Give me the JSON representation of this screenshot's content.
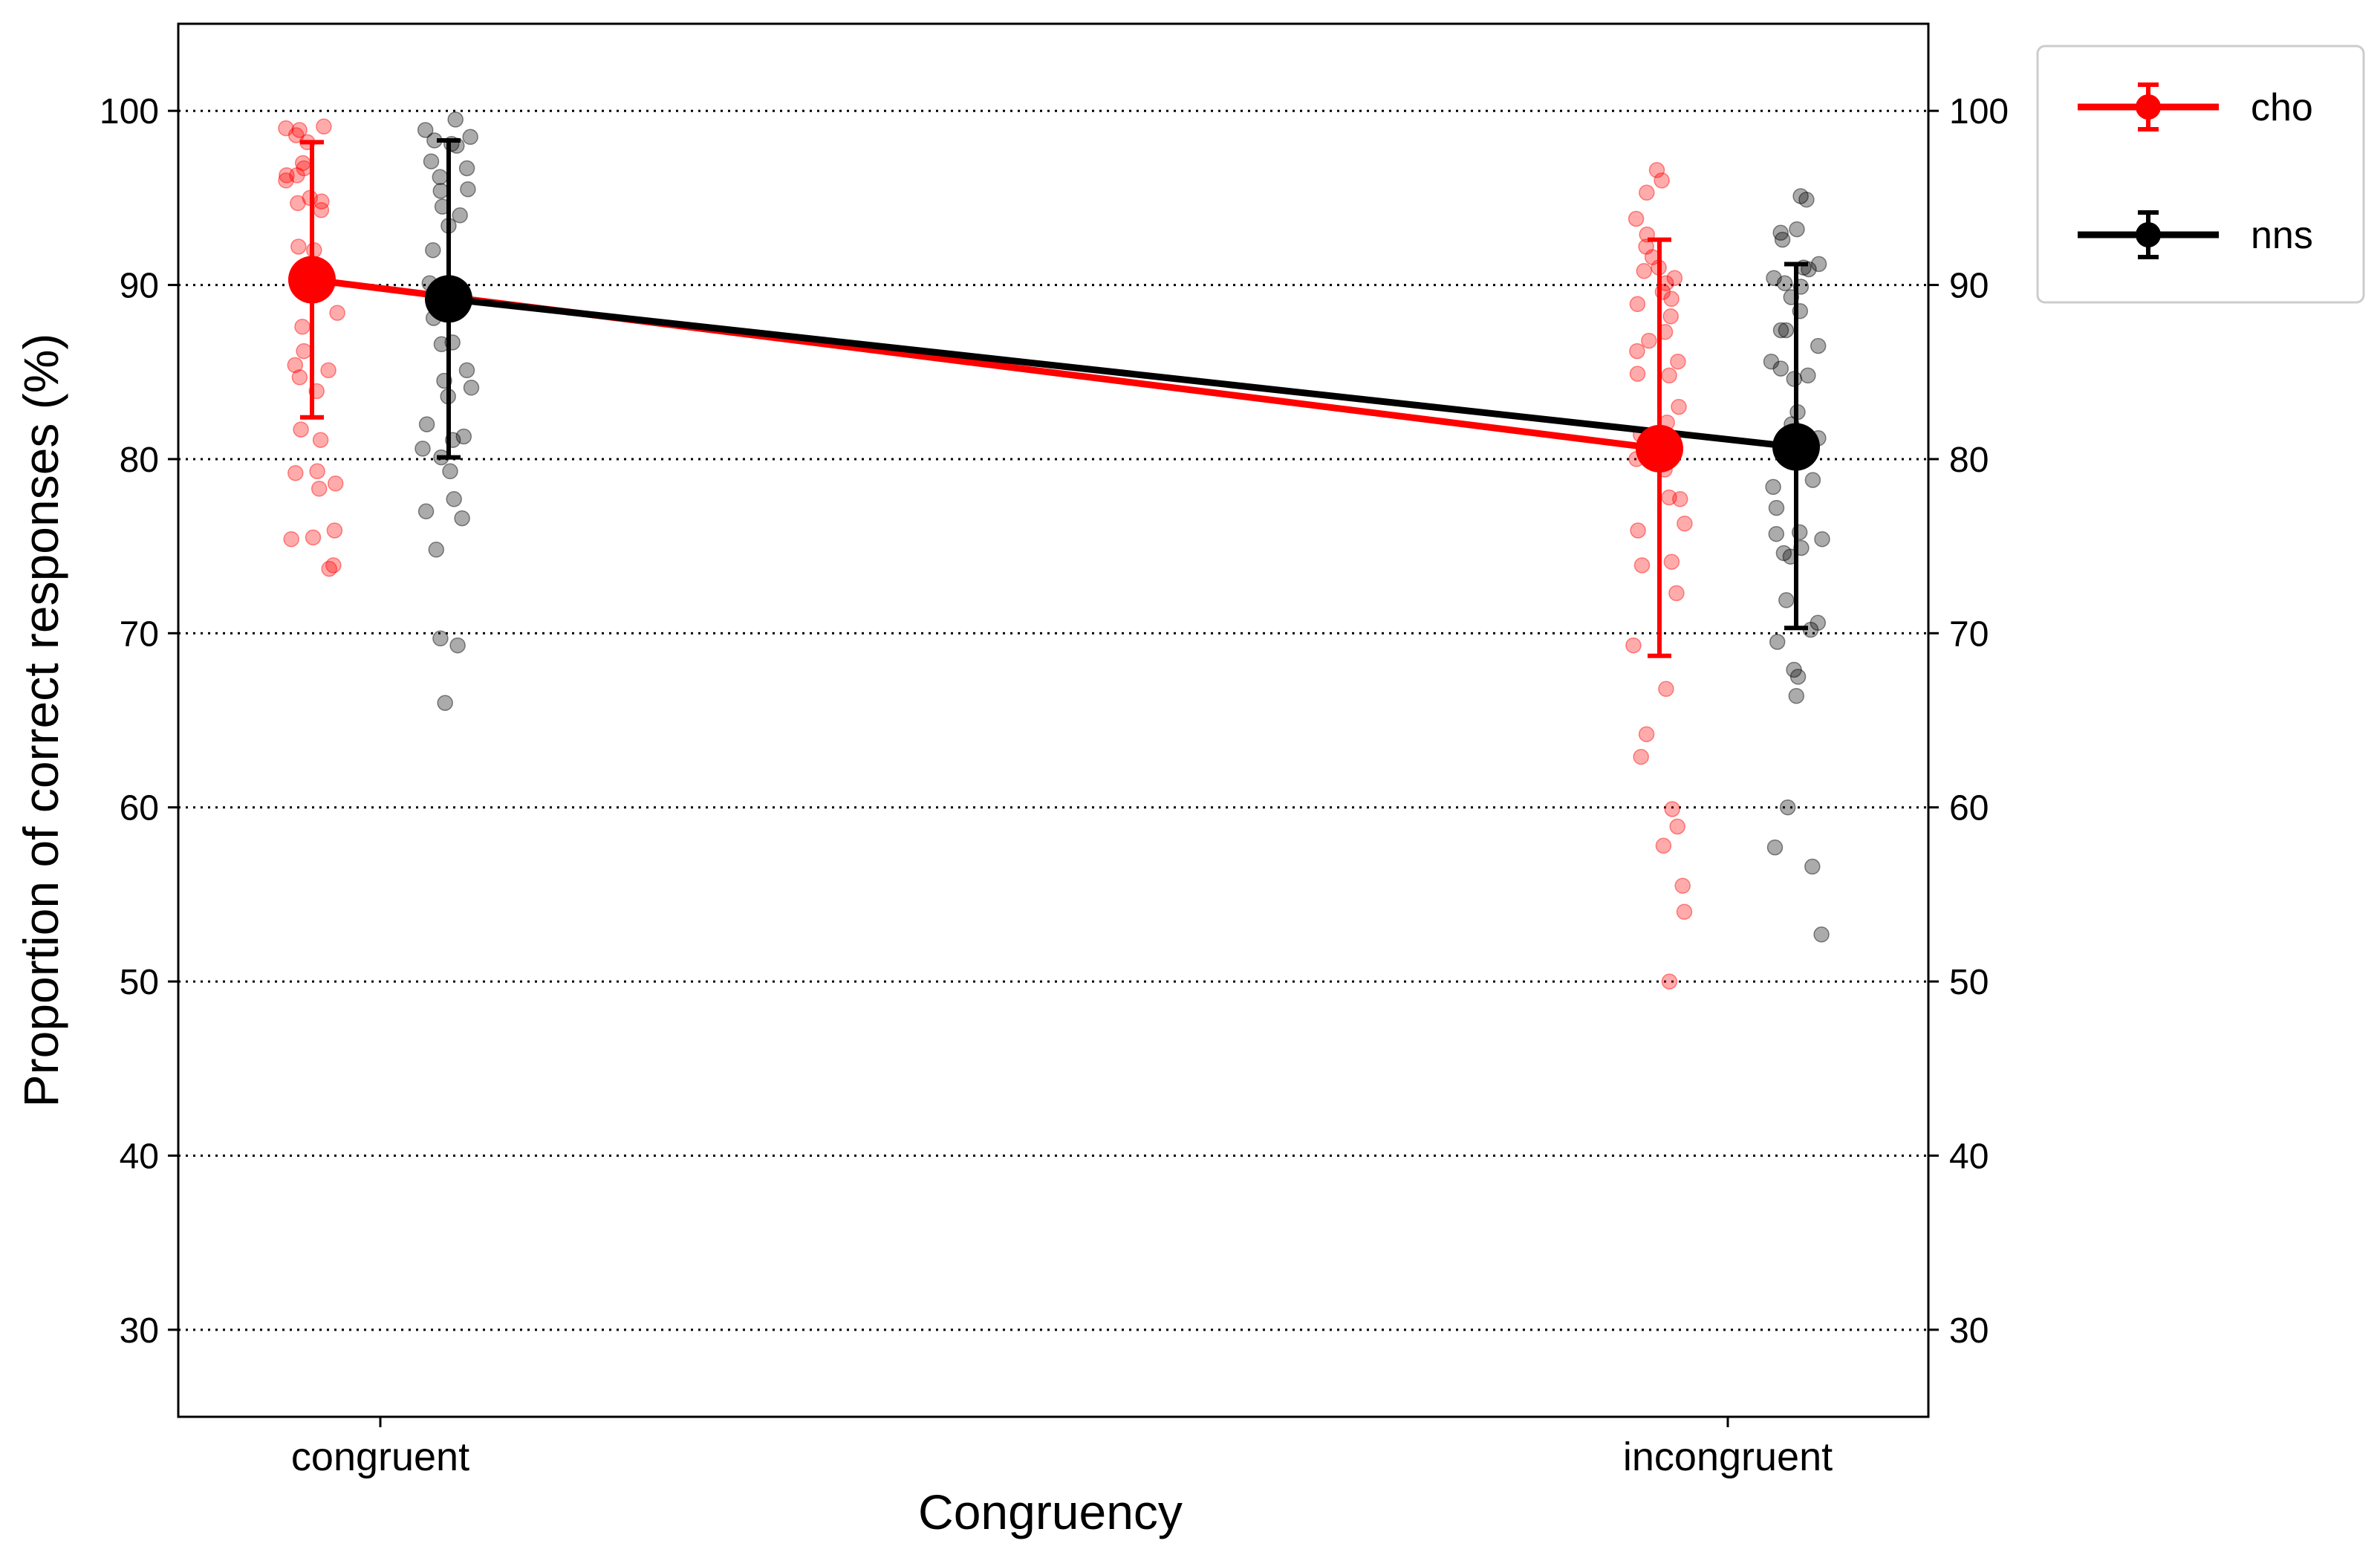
{
  "chart_data": {
    "type": "scatter",
    "title": "",
    "xlabel": "Congruency",
    "ylabel": "Proportion of correct responses (%)",
    "categories": [
      "congruent",
      "incongruent"
    ],
    "ylim": [
      25,
      105
    ],
    "yticks": [
      30,
      40,
      50,
      60,
      70,
      80,
      90,
      100
    ],
    "grid": true,
    "right_axis_ticks": true,
    "legend_position": "outside top-right",
    "series": [
      {
        "name": "cho",
        "color": "#ff0000",
        "means": [
          90.3,
          80.6
        ],
        "error_low": [
          82.4,
          68.7
        ],
        "error_high": [
          98.2,
          92.6
        ],
        "points": [
          [
            98.2,
            99.0,
            96.7,
            96.3,
            98.9,
            98.6,
            99.1,
            96.0,
            96.3,
            97.0,
            94.8,
            94.7,
            95.0,
            94.3,
            92.2,
            92.0,
            91.1,
            89.6,
            88.4,
            87.6,
            86.2,
            85.4,
            85.1,
            84.7,
            83.9,
            81.7,
            81.1,
            79.3,
            79.2,
            78.6,
            78.3,
            75.9,
            75.5,
            75.4,
            73.9,
            73.7
          ],
          [
            96.6,
            96.0,
            95.3,
            93.8,
            92.9,
            92.2,
            91.6,
            91.0,
            90.8,
            90.4,
            90.1,
            89.6,
            89.2,
            88.9,
            88.2,
            87.3,
            86.8,
            86.2,
            85.6,
            84.8,
            84.9,
            83.0,
            82.1,
            81.4,
            80.0,
            79.4,
            77.8,
            77.7,
            76.3,
            75.9,
            74.1,
            73.9,
            72.3,
            69.3,
            66.8,
            64.2,
            62.9,
            59.9,
            58.9,
            57.8,
            55.5,
            54.0,
            50.0
          ]
        ]
      },
      {
        "name": "nns",
        "color": "#000000",
        "means": [
          89.2,
          80.7
        ],
        "error_low": [
          80.1,
          70.3
        ],
        "error_high": [
          98.3,
          91.2
        ],
        "points": [
          [
            99.5,
            98.9,
            98.5,
            98.3,
            98.1,
            98.0,
            97.1,
            96.7,
            96.2,
            95.5,
            95.4,
            94.5,
            94.0,
            93.4,
            92.0,
            90.1,
            89.2,
            88.1,
            86.7,
            86.6,
            85.1,
            84.5,
            84.1,
            83.6,
            82.0,
            81.3,
            81.1,
            80.6,
            80.1,
            79.3,
            77.7,
            77.0,
            76.6,
            74.8,
            69.7,
            69.3,
            66.0
          ],
          [
            95.1,
            94.9,
            93.2,
            93.0,
            92.6,
            91.2,
            91.0,
            90.9,
            90.4,
            90.1,
            89.9,
            89.3,
            88.5,
            87.4,
            87.4,
            86.5,
            85.6,
            85.2,
            84.8,
            84.6,
            82.7,
            82.0,
            81.2,
            80.3,
            79.9,
            78.8,
            78.4,
            77.2,
            75.8,
            75.7,
            75.4,
            74.9,
            74.6,
            74.4,
            71.9,
            70.6,
            70.2,
            69.5,
            67.9,
            67.5,
            66.4,
            60.0,
            57.7,
            56.6,
            52.7
          ]
        ]
      }
    ]
  }
}
